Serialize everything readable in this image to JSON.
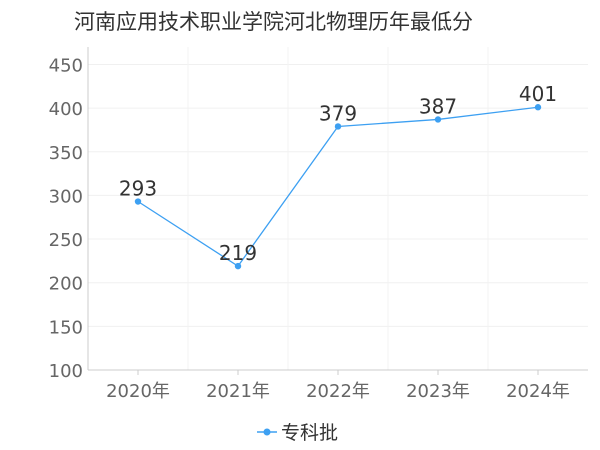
{
  "chart_data": {
    "type": "line",
    "title": "河南应用技术职业学院河北物理历年最低分",
    "categories": [
      "2020年",
      "2021年",
      "2022年",
      "2023年",
      "2024年"
    ],
    "series": [
      {
        "name": "专科批",
        "values": [
          293,
          219,
          379,
          387,
          401
        ],
        "color": "#3da0f2"
      }
    ],
    "y_ticks": [
      100,
      150,
      200,
      250,
      300,
      350,
      400,
      450
    ],
    "ylim": [
      100,
      470
    ],
    "xlabel": "",
    "ylabel": "",
    "grid": true,
    "legend_position": "bottom-center"
  }
}
